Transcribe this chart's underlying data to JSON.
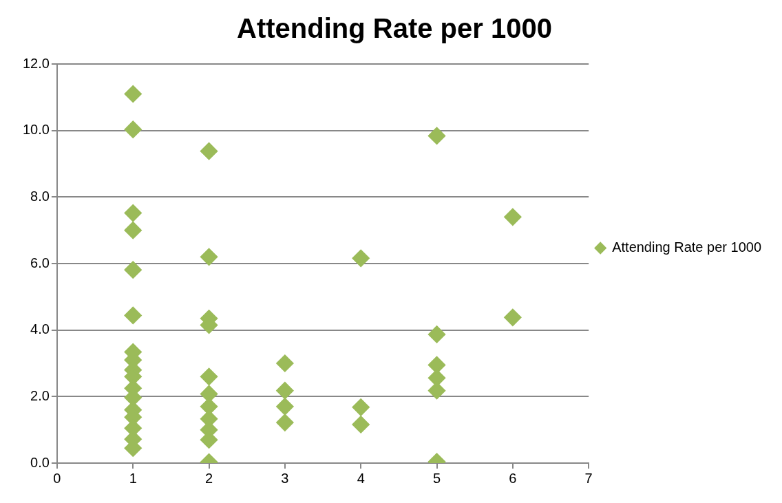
{
  "chart_data": {
    "type": "scatter",
    "title": "Attending Rate per 1000",
    "xlim": [
      0,
      7
    ],
    "xticks": [
      0,
      1,
      2,
      3,
      4,
      5,
      6,
      7
    ],
    "ylim": [
      0,
      12
    ],
    "yticks": [
      {
        "value": 0,
        "label": "0.0"
      },
      {
        "value": 2,
        "label": "2.0"
      },
      {
        "value": 4,
        "label": "4.0"
      },
      {
        "value": 6,
        "label": "6.0"
      },
      {
        "value": 8,
        "label": "8.0"
      },
      {
        "value": 10,
        "label": "10.0"
      },
      {
        "value": 12,
        "label": "12.0"
      }
    ],
    "grid": "y",
    "legend": "right",
    "marker": "diamond",
    "series": [
      {
        "name": "Attending Rate per 1000",
        "color": "#9bbb59",
        "x": [
          1,
          1,
          1,
          1,
          1,
          1,
          1,
          1,
          1,
          1,
          1,
          1,
          1,
          1,
          1,
          1,
          1,
          2,
          2,
          2,
          2,
          2,
          2,
          2,
          2,
          2,
          2,
          2,
          3,
          3,
          3,
          3,
          4,
          4,
          4,
          5,
          5,
          5,
          5,
          5,
          5,
          6,
          6
        ],
        "values": [
          11.1,
          10.03,
          7.52,
          7.0,
          5.81,
          4.44,
          3.34,
          3.1,
          2.8,
          2.6,
          2.25,
          1.97,
          1.6,
          1.38,
          1.05,
          0.72,
          0.45,
          9.38,
          6.2,
          4.35,
          4.15,
          2.6,
          2.08,
          1.7,
          1.33,
          1.0,
          0.7,
          0.03,
          3.0,
          2.18,
          1.7,
          1.22,
          6.16,
          1.68,
          1.16,
          9.84,
          3.87,
          2.95,
          2.56,
          2.18,
          0.04,
          7.4,
          4.38
        ]
      }
    ]
  }
}
